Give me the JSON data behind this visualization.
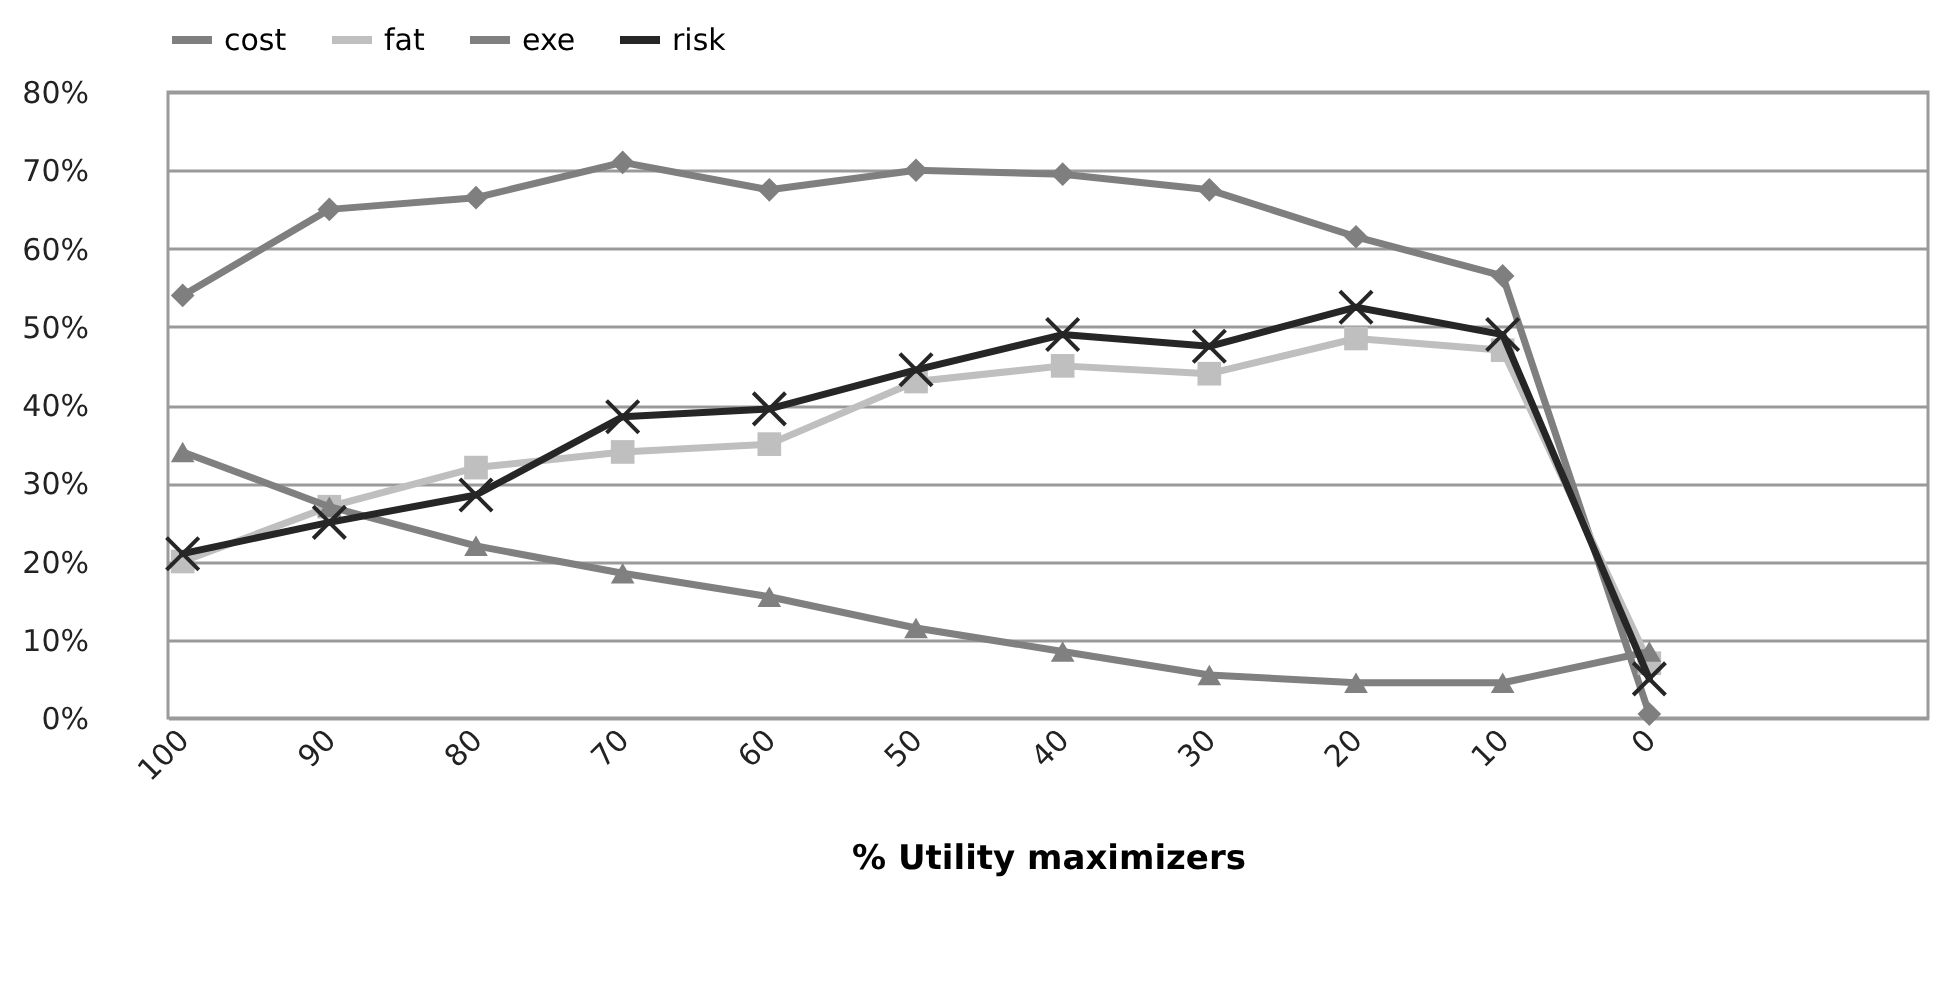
{
  "chart_data": {
    "type": "line",
    "xlabel": "% Utility maximizers",
    "categories": [
      "100",
      "90",
      "80",
      "70",
      "60",
      "50",
      "40",
      "30",
      "20",
      "10",
      "0"
    ],
    "series": [
      {
        "name": "cost",
        "color": "#7f7f7f",
        "marker": "diamond",
        "values": [
          54,
          65,
          66.5,
          71,
          67.5,
          70,
          69.5,
          67.5,
          61.5,
          56.5,
          0.5
        ]
      },
      {
        "name": "fat",
        "color": "#bfbfbf",
        "marker": "square",
        "values": [
          20,
          27,
          32,
          34,
          35,
          43,
          45,
          44,
          48.5,
          47,
          7
        ]
      },
      {
        "name": "exe",
        "color": "#808080",
        "marker": "triangle",
        "values": [
          34,
          27,
          22,
          18.5,
          15.5,
          11.5,
          8.5,
          5.5,
          4.5,
          4.5,
          8.5
        ]
      },
      {
        "name": "risk",
        "color": "#262626",
        "marker": "cross",
        "values": [
          21,
          25,
          28.5,
          38.5,
          39.5,
          44.5,
          49,
          47.5,
          52.5,
          49,
          5
        ]
      }
    ],
    "ylim": [
      0,
      80
    ],
    "yticks": [
      {
        "value": 0,
        "label": "0%"
      },
      {
        "value": 10,
        "label": "10%"
      },
      {
        "value": 20,
        "label": "20%"
      },
      {
        "value": 30,
        "label": "30%"
      },
      {
        "value": 40,
        "label": "40%"
      },
      {
        "value": 50,
        "label": "50%"
      },
      {
        "value": 60,
        "label": "60%"
      },
      {
        "value": 70,
        "label": "70%"
      },
      {
        "value": 80,
        "label": "80%"
      }
    ],
    "grid": "y",
    "legend": "top"
  }
}
